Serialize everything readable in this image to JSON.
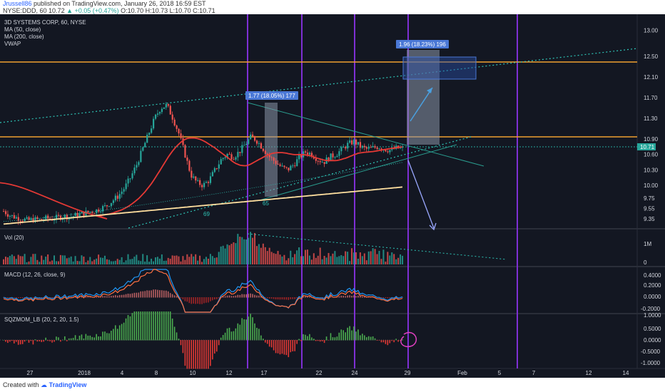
{
  "header": {
    "username": "Jrussell86",
    "published": " published on TradingView.com, January 26, 2018 16:59 EST",
    "ticker": "NYSE:DDD, 60",
    "quote": "10.72",
    "change": "▲ +0.05 (+0.47%)",
    "ohlc": "O:10.70  H:10.73  L:10.70  C:10.71"
  },
  "footer": {
    "created_with": "Created with",
    "brand": "TradingView"
  },
  "chart_data": [
    {
      "type": "candlestick",
      "title": "3D SYSTEMS CORP, 60, NYSE",
      "legend": [
        "MA (50, close)",
        "MA (200, close)",
        "VWAP"
      ],
      "ylim": [
        9.2,
        13.2
      ],
      "yticks": [
        "13.00",
        "12.50",
        "12.10",
        "11.70",
        "11.30",
        "10.90",
        "10.60",
        "10.30",
        "10.00",
        "9.75",
        "9.55",
        "9.35"
      ],
      "last_price": "10.71",
      "xticks": [
        "27",
        "2018",
        "4",
        "8",
        "10",
        "12",
        "17",
        "22",
        "24",
        "29",
        "Feb",
        "5",
        "7",
        "12",
        "14"
      ],
      "horizontal_levels": [
        12.5,
        10.9
      ],
      "measure_labels": [
        "1.77 (18.05%) 177",
        "1.96 (18.23%) 196"
      ],
      "fib_labels": [
        "69",
        "65"
      ],
      "vertical_markers": 5,
      "close_path": [
        9.5,
        9.42,
        9.38,
        9.35,
        9.32,
        9.34,
        9.33,
        9.36,
        9.35,
        9.38,
        9.4,
        9.39,
        9.42,
        9.45,
        9.48,
        9.5,
        9.55,
        9.6,
        9.7,
        9.8,
        9.95,
        10.15,
        10.4,
        10.7,
        11.0,
        11.3,
        11.5,
        11.55,
        11.3,
        11.0,
        10.6,
        10.2,
        10.05,
        10.0,
        10.1,
        10.3,
        10.5,
        10.6,
        10.55,
        10.65,
        10.8,
        10.95,
        10.85,
        10.7,
        10.55,
        10.45,
        10.35,
        10.3,
        10.4,
        10.55,
        10.65,
        10.6,
        10.5,
        10.45,
        10.55,
        10.6,
        10.7,
        10.8,
        10.85,
        10.75,
        10.7,
        10.72,
        10.75,
        10.7,
        10.68,
        10.72,
        10.71
      ]
    },
    {
      "type": "bar",
      "title": "Vol (20)",
      "yticks": [
        "1M",
        "0"
      ]
    },
    {
      "type": "line",
      "title": "MACD (12, 26, close, 9)",
      "yticks": [
        "0.4000",
        "0.2000",
        "0.0000",
        "-0.2000"
      ]
    },
    {
      "type": "bar",
      "title": "SQZMOM_LB (20, 2, 20, 1.5)",
      "yticks": [
        "1.0000",
        "0.5000",
        "0.0000",
        "-0.5000",
        "-1.0000"
      ]
    }
  ]
}
